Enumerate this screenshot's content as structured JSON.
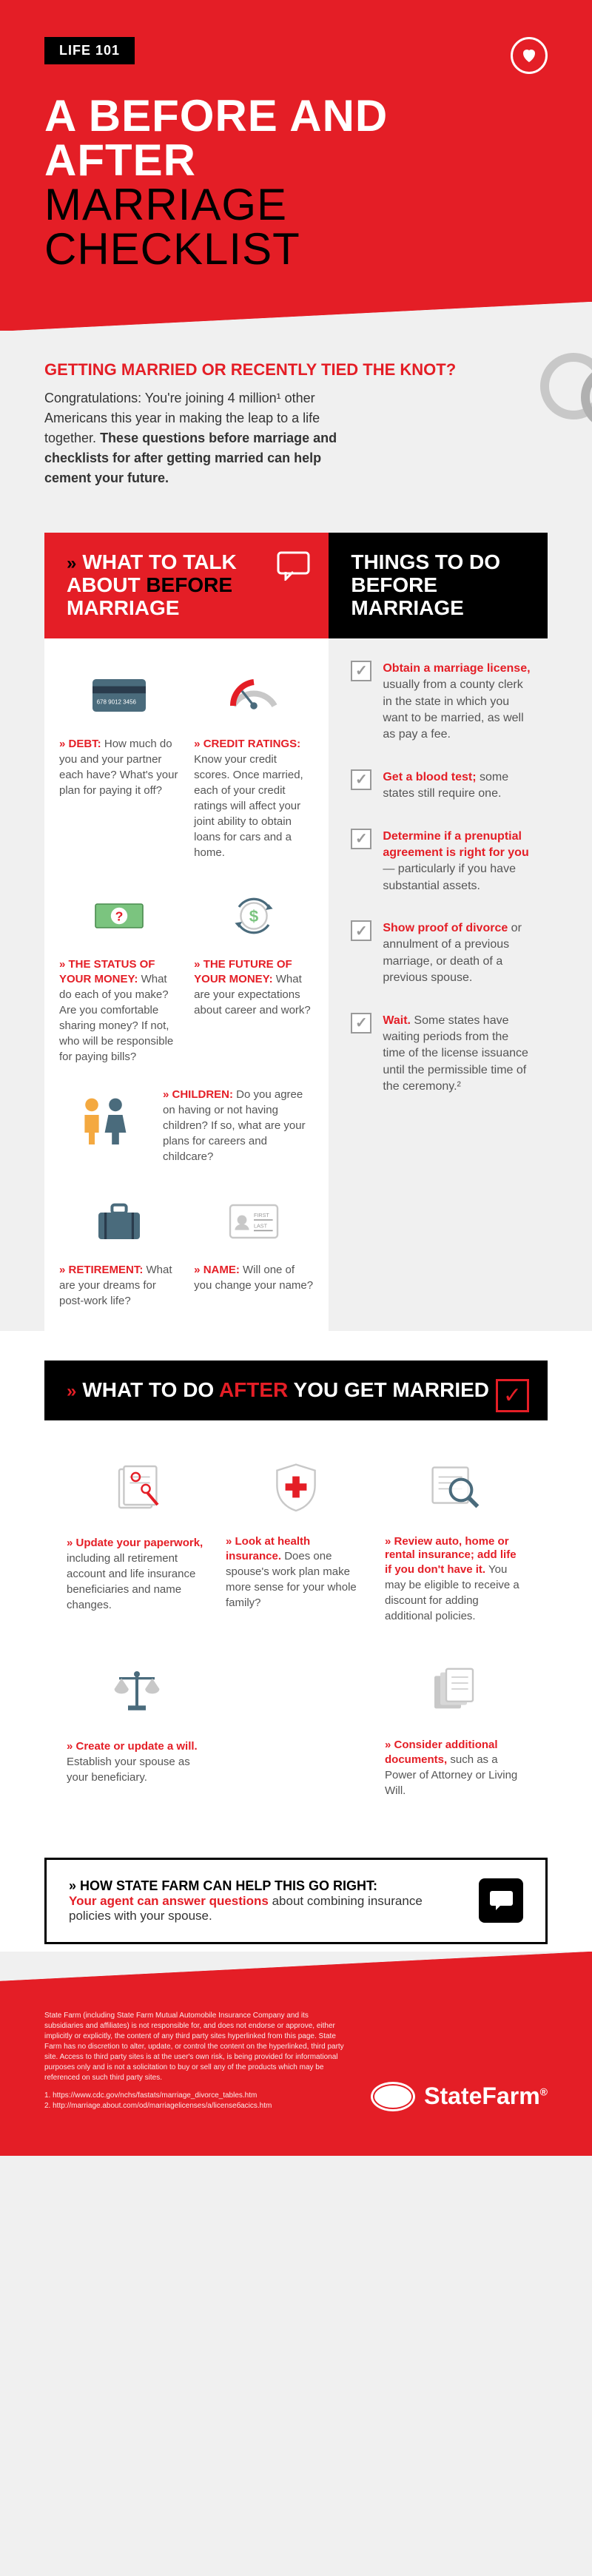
{
  "colors": {
    "red": "#e41e26",
    "black": "#000000",
    "grey_bg": "#f0f0f0",
    "grey_text": "#555555",
    "grey_icon": "#c8c8c8"
  },
  "header": {
    "badge": "LIFE 101",
    "title_line1": "A BEFORE AND AFTER",
    "title_line2": "MARRIAGE CHECKLIST"
  },
  "intro": {
    "title": "GETTING MARRIED OR RECENTLY TIED THE KNOT?",
    "text_pre": "Congratulations: You're joining 4 million¹ other Americans this year in making the leap to a life together. ",
    "text_bold": "These questions before marriage and checklists for after getting married can help cement your future."
  },
  "before": {
    "left_header_pre": "WHAT TO TALK ABOUT ",
    "left_header_black": "BEFORE",
    "left_header_post": " MARRIAGE",
    "right_header": "THINGS TO DO BEFORE MARRIAGE",
    "items": [
      {
        "icon": "credit-card",
        "label": "DEBT:",
        "text": " How much do you and your partner each have? What's your plan for paying it off?"
      },
      {
        "icon": "gauge",
        "label": "CREDIT RATINGS:",
        "text": " Know your credit scores. Once married, each of your credit ratings will affect your joint ability to obtain loans for cars and a home."
      },
      {
        "icon": "money-question",
        "label": "THE STATUS OF YOUR MONEY:",
        "text": " What do each of you make? Are you comfortable sharing money? If not, who will be responsible for paying bills?"
      },
      {
        "icon": "money-arrows",
        "label": "THE FUTURE OF YOUR MONEY:",
        "text": " What are your expectations about career and work?"
      },
      {
        "icon": "people",
        "label": "CHILDREN:",
        "text": " Do you agree on having or not having children? If so, what are your plans for careers and childcare?",
        "full": true
      },
      {
        "icon": "suitcase",
        "label": "RETIREMENT:",
        "text": " What are your dreams for post-work life?"
      },
      {
        "icon": "id-card",
        "label": "NAME:",
        "text": " Will one of you change your name?"
      }
    ],
    "checks": [
      {
        "bold": "Obtain a marriage license,",
        "text": " usually from a county clerk in the state in which you want to be married, as well as pay a fee."
      },
      {
        "bold": "Get a blood test;",
        "text": " some states still require one."
      },
      {
        "bold": "Determine if a prenuptial agreement is right for you",
        "text": " — particularly if you have substantial assets."
      },
      {
        "bold": "Show proof of divorce",
        "text": " or annulment of a previous marriage, or death of a previous spouse."
      },
      {
        "bold": "Wait.",
        "text": " Some states have waiting periods from the time of the license issuance until the permissible time of the ceremony.²"
      }
    ]
  },
  "after": {
    "header_pre": "WHAT TO DO ",
    "header_red": "AFTER",
    "header_post": " YOU GET MARRIED",
    "items": [
      {
        "icon": "paperwork",
        "label": "Update your paperwork,",
        "text": " including all retirement account and life insurance beneficiaries and name changes."
      },
      {
        "icon": "health",
        "label": "Look at health insurance.",
        "text": " Does one spouse's work plan make more sense for your whole family?"
      },
      {
        "icon": "magnify",
        "label": "Review auto, home or rental insurance; add life if you don't have it.",
        "text": " You may be eligible to receive a discount for adding additional policies."
      },
      {
        "icon": "scale",
        "label": "Create or update a will.",
        "text": " Establish your spouse as your beneficiary."
      },
      {
        "icon": "docs",
        "label": "Consider additional documents,",
        "text": " such as a Power of Attorney or Living Will."
      }
    ]
  },
  "help": {
    "title_plain": "HOW STATE FARM CAN HELP THIS GO RIGHT:",
    "title_red": "Your agent can answer questions",
    "title_rest": " about combining insurance policies with your spouse."
  },
  "footer": {
    "disclaimer": "State Farm (including State Farm Mutual Automobile Insurance Company and its subsidiaries and affiliates) is not responsible for, and does not endorse or approve, either implicitly or explicitly, the content of any third party sites hyperlinked from this page. State Farm has no discretion to alter, update, or control the content on the hyperlinked, third party site. Access to third party sites is at the user's own risk, is being provided for informational purposes only and is not a solicitation to buy or sell any of the products which may be referenced on such third party sites.",
    "ref1": "1. https://www.cdc.gov/nchs/fastats/marriage_divorce_tables.htm",
    "ref2": "2. http://marriage.about.com/od/marriagelicenses/a/licenseбасісs.htm",
    "logo_text": "StateFarm"
  }
}
